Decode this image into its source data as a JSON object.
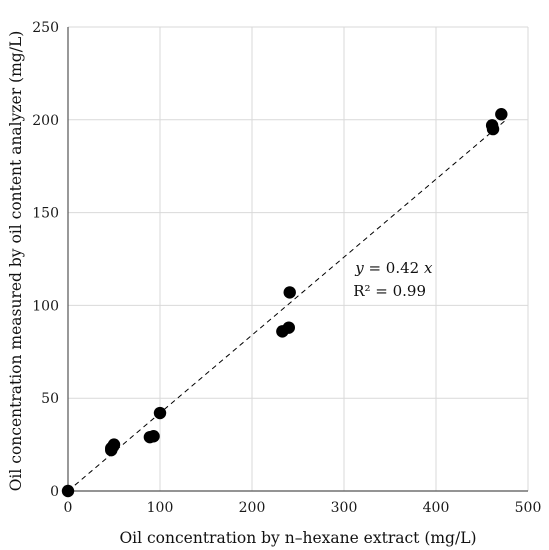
{
  "chart_data": {
    "type": "scatter",
    "xlabel": "Oil concentration by n–hexane extract (mg/L)",
    "ylabel": "Oil concentration  measured by oil content analyzer (mg/L)",
    "xlim": [
      0,
      500
    ],
    "ylim": [
      0,
      250
    ],
    "xticks": [
      "0",
      "100",
      "200",
      "300",
      "400",
      "500"
    ],
    "yticks": [
      "0",
      "50",
      "100",
      "150",
      "200",
      "250"
    ],
    "grid": true,
    "legend": "none",
    "marker_color": "#000000",
    "grid_color": "#d9d9d9",
    "series": [
      {
        "points": [
          {
            "x": 0,
            "y": 0
          },
          {
            "x": 47,
            "y": 23
          },
          {
            "x": 49,
            "y": 24
          },
          {
            "x": 50,
            "y": 25
          },
          {
            "x": 47,
            "y": 22
          },
          {
            "x": 89,
            "y": 29
          },
          {
            "x": 93,
            "y": 29.5
          },
          {
            "x": 100,
            "y": 42
          },
          {
            "x": 233,
            "y": 86
          },
          {
            "x": 240,
            "y": 88
          },
          {
            "x": 241,
            "y": 107
          },
          {
            "x": 461,
            "y": 197
          },
          {
            "x": 462,
            "y": 195
          },
          {
            "x": 471,
            "y": 203
          }
        ]
      }
    ],
    "trendline": {
      "style": "dashed",
      "slope": 0.42,
      "x_range": [
        0,
        475
      ]
    },
    "annotations": {
      "equation_prefix": "y",
      "equation_middle": " = 0.42 ",
      "equation_suffix": "x",
      "r_squared": "R² = 0.99",
      "position_data": {
        "x": 310,
        "y": 112
      }
    }
  }
}
